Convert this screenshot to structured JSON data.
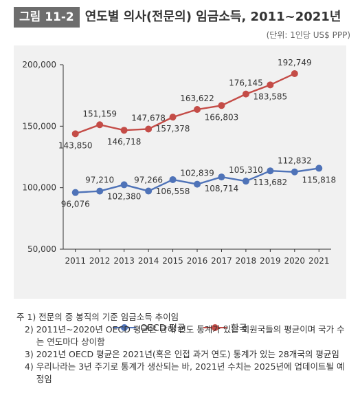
{
  "figure": {
    "badge": "그림 11-2",
    "title": "연도별 의사(전문의) 임금소득, 2011~2021년",
    "unit": "(단위: 1인당 US$ PPP)"
  },
  "colors": {
    "oecd": "#4f73b8",
    "korea": "#c44c47",
    "plot_background": "#f1f1f1",
    "axis": "#333333",
    "badge": "#6d6d6d"
  },
  "chart_data": {
    "type": "line",
    "title": "연도별 의사(전문의) 임금소득, 2011~2021년",
    "xlabel": "",
    "ylabel": "",
    "categories": [
      "2011",
      "2012",
      "2013",
      "2014",
      "2015",
      "2016",
      "2017",
      "2018",
      "2019",
      "2020",
      "2021"
    ],
    "ylim": [
      50000,
      200000
    ],
    "yticks": [
      50000,
      100000,
      150000,
      200000
    ],
    "ytick_labels": [
      "50,000",
      "100,000",
      "150,000",
      "200,000"
    ],
    "grid": false,
    "legend_position": "bottom",
    "series": [
      {
        "key": "oecd",
        "name": "OECD 평균",
        "values": [
          96076,
          97210,
          102380,
          97266,
          106558,
          102839,
          108714,
          105310,
          113682,
          112832,
          115818
        ],
        "labels": [
          "96,076",
          "97,210",
          "102,380",
          "97,266",
          "106,558",
          "102,839",
          "108,714",
          "105,310",
          "113,682",
          "112,832",
          "115,818"
        ]
      },
      {
        "key": "korea",
        "name": "한국",
        "values": [
          143850,
          151159,
          146718,
          147678,
          157378,
          163622,
          166803,
          176145,
          183585,
          192749,
          null
        ],
        "labels": [
          "143,850",
          "151,159",
          "146,718",
          "147,678",
          "157,378",
          "163,622",
          "166,803",
          "176,145",
          "183,585",
          "192,749",
          ""
        ]
      }
    ]
  },
  "notes": [
    {
      "prefix": "주 ",
      "num": "1) ",
      "text": "전문의 중 봉직의 기준 임금소득 추이임"
    },
    {
      "prefix": "   ",
      "num": "2) ",
      "text": "2011년~2020년 OECD 평균은 당해 연도 통계가 있는 회원국들의 평균이며 국가 수는 연도마다 상이함"
    },
    {
      "prefix": "   ",
      "num": "3) ",
      "text": "2021년 OECD 평균은 2021년(혹은 인접 과거 연도) 통계가 있는 28개국의 평균임"
    },
    {
      "prefix": "   ",
      "num": "4) ",
      "text": "우리나라는 3년 주기로 통계가 생산되는 바, 2021년 수치는 2025년에 업데이트될 예정임"
    }
  ]
}
